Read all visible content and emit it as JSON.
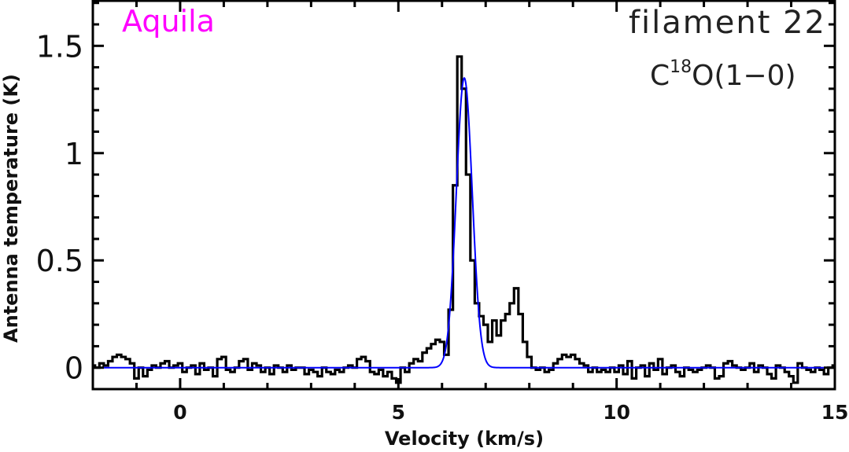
{
  "chart_data": {
    "type": "line",
    "xlabel": "Velocity (km/s)",
    "ylabel": "Antenna temperature (K)",
    "xlim": [
      -2,
      15
    ],
    "ylim": [
      -0.1,
      1.71
    ],
    "xticks": [
      0,
      5,
      10,
      15
    ],
    "xtick_labels": [
      "0",
      "5",
      "10",
      "15"
    ],
    "yticks": [
      0,
      0.5,
      1,
      1.5
    ],
    "ytick_labels": [
      "0",
      "0.5",
      "1",
      "1.5"
    ],
    "x_minor_step": 1,
    "y_minor_step": 0.1,
    "grid": false,
    "annotations": {
      "region": "Aquila",
      "filament": "filament 22",
      "line_species": "C",
      "line_superscript": "18",
      "line_rest": "O(1−0)"
    },
    "colors": {
      "spectrum": "#000000",
      "fit": "#0000ff",
      "region": "#ff00ff"
    },
    "spectrum": {
      "style": "step",
      "x_start": -2.0,
      "x_step": 0.1,
      "values": [
        0.01,
        0.0,
        0.02,
        0.01,
        0.03,
        0.05,
        0.06,
        0.05,
        0.04,
        0.02,
        -0.05,
        0.0,
        -0.04,
        -0.01,
        0.01,
        0.0,
        0.02,
        0.03,
        0.0,
        0.01,
        0.02,
        -0.02,
        0.0,
        0.01,
        -0.03,
        0.02,
        -0.01,
        0.0,
        -0.04,
        0.04,
        0.05,
        -0.01,
        -0.02,
        0.0,
        0.03,
        0.04,
        -0.01,
        0.02,
        0.01,
        -0.02,
        0.0,
        -0.03,
        0.01,
        0.0,
        -0.02,
        0.01,
        -0.01,
        0.0,
        0.0,
        -0.03,
        -0.01,
        -0.02,
        -0.04,
        0.0,
        -0.02,
        -0.03,
        -0.01,
        -0.02,
        0.0,
        0.01,
        0.0,
        0.04,
        0.05,
        0.03,
        -0.02,
        -0.03,
        -0.01,
        -0.04,
        -0.02,
        -0.05,
        -0.07,
        0.0,
        -0.02,
        0.02,
        0.04,
        0.03,
        0.07,
        0.09,
        0.11,
        0.13,
        0.12,
        0.06,
        0.27,
        0.85,
        1.45,
        1.3,
        0.9,
        0.5,
        0.3,
        0.24,
        0.2,
        0.12,
        0.22,
        0.15,
        0.22,
        0.25,
        0.3,
        0.37,
        0.25,
        0.12,
        0.05,
        0.0,
        -0.01,
        0.0,
        -0.02,
        -0.01,
        0.02,
        0.04,
        0.06,
        0.05,
        0.06,
        0.04,
        0.02,
        0.01,
        -0.02,
        0.0,
        -0.02,
        -0.01,
        -0.02,
        0.0,
        -0.02,
        0.01,
        -0.03,
        0.03,
        -0.05,
        0.0,
        0.01,
        -0.04,
        0.02,
        -0.01,
        0.04,
        -0.03,
        0.0,
        0.01,
        -0.02,
        -0.04,
        0.0,
        -0.01,
        -0.02,
        -0.01,
        0.0,
        0.01,
        0.0,
        -0.05,
        -0.04,
        0.02,
        0.03,
        0.01,
        0.0,
        -0.01,
        0.0,
        0.02,
        -0.02,
        0.01,
        0.0,
        -0.03,
        -0.05,
        0.01,
        0.0,
        -0.02,
        -0.04,
        -0.07,
        0.02,
        0.0,
        -0.01,
        -0.02,
        0.0,
        -0.01,
        -0.03,
        0.0,
        0.01
      ]
    },
    "gaussian_fit": {
      "amplitude": 1.35,
      "center": 6.51,
      "fwhm": 0.43
    }
  }
}
